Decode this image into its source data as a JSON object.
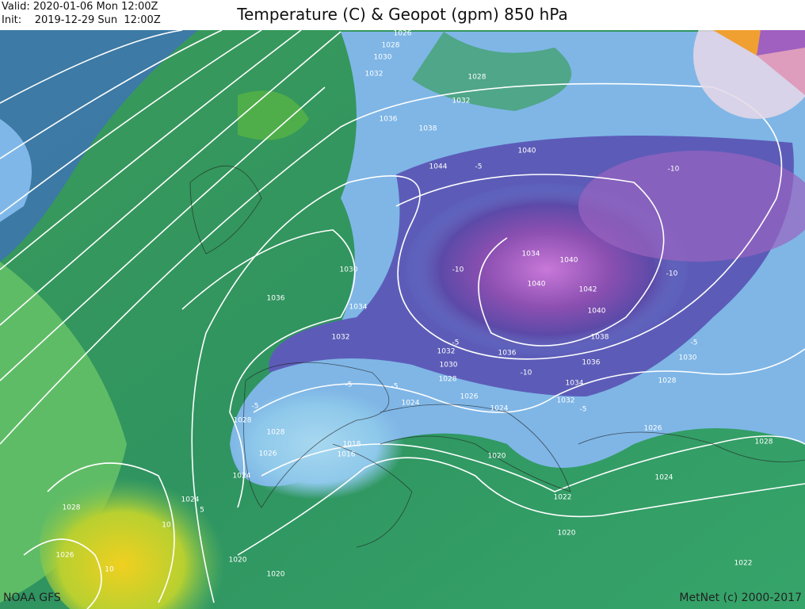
{
  "header": {
    "valid": "Valid: 2020-01-06 Mon 12:00Z",
    "init": "Init:    2019-12-29 Sun  12:00Z",
    "title": "Temperature (C) & Geopot (gpm) 850 hPa"
  },
  "footer": {
    "source": "NOAA GFS",
    "credit": "MetNet (c) 2000-2017"
  },
  "isobar_labels": [
    "1026",
    "1028",
    "1030",
    "1032",
    "1028",
    "1032",
    "1036",
    "1038",
    "1040",
    "1044",
    "1034",
    "1040",
    "1040",
    "1042",
    "1040",
    "1038",
    "1036",
    "1036",
    "1034",
    "1032",
    "1030",
    "1036",
    "1034",
    "1032",
    "1032",
    "1030",
    "1028",
    "1026",
    "1024",
    "1024",
    "1028",
    "1026",
    "1018",
    "1016",
    "1020",
    "1030",
    "1028",
    "1026",
    "1028",
    "1024",
    "1022",
    "1020",
    "1022",
    "1028",
    "1026",
    "1024",
    "1024",
    "1020",
    "1020",
    "1028"
  ],
  "isotherm_labels": [
    "-5",
    "-10",
    "-10",
    "-10",
    "-5",
    "-5",
    "-5",
    "-5",
    "-10",
    "-5",
    "10",
    "10",
    "5",
    "-5"
  ]
}
